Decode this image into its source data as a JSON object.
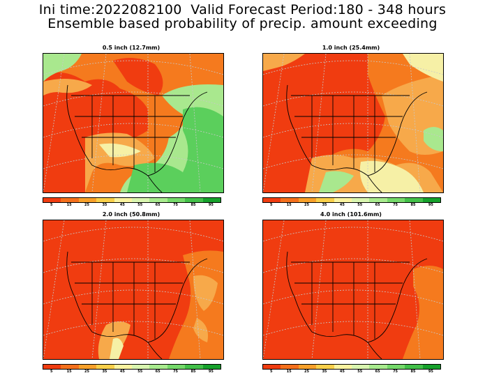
{
  "header": {
    "line1": "Ini time:2022082100  Valid Forecast Period:180 - 348 hours",
    "line2": "Ensemble based probability of precip. amount exceeding"
  },
  "panels": [
    {
      "title": "0.5 inch (12.7mm)"
    },
    {
      "title": "1.0 inch (25.4mm)"
    },
    {
      "title": "2.0 inch (50.8mm)"
    },
    {
      "title": "4.0 inch (101.6mm)"
    }
  ],
  "colorbar": {
    "ticks": [
      "5",
      "15",
      "25",
      "35",
      "45",
      "55",
      "65",
      "75",
      "85",
      "95"
    ],
    "colors": [
      "#f03c10",
      "#f4701c",
      "#f7a02a",
      "#f8cf4a",
      "#faf3a0",
      "#d9f5b0",
      "#a8eb8e",
      "#74d96a",
      "#42c049",
      "#16a12c"
    ]
  },
  "palette": {
    "red": "#f03c10",
    "orange": "#f57a1e",
    "lightorange": "#f7a94a",
    "yellow": "#f6f0a6",
    "lightgreen": "#a9e88e",
    "green": "#5bcf5c",
    "grid": "#c8c8c8",
    "border": "#000000"
  }
}
